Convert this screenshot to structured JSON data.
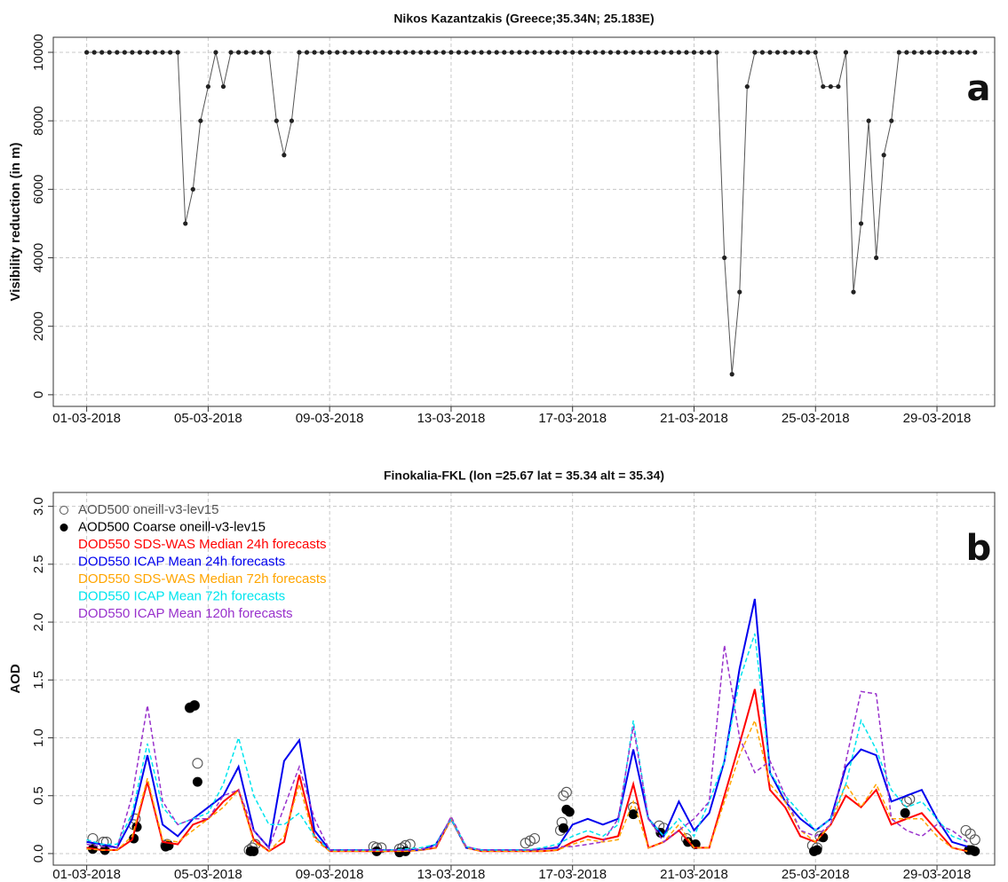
{
  "chart_data": [
    {
      "type": "line",
      "title": "Nikos Kazantzakis (Greece;35.34N; 25.183E)",
      "y_label": "Visibility reduction (in m)",
      "annotation": "a",
      "color": "#222222",
      "line_color": "#555555",
      "markers": true,
      "grid": true,
      "xlim": [
        -0.1,
        30.9
      ],
      "ylim": [
        -340,
        10440
      ],
      "xticks": [
        {
          "value": 1,
          "label": "01-03-2018"
        },
        {
          "value": 5,
          "label": "05-03-2018"
        },
        {
          "value": 9,
          "label": "09-03-2018"
        },
        {
          "value": 13,
          "label": "13-03-2018"
        },
        {
          "value": 17,
          "label": "17-03-2018"
        },
        {
          "value": 21,
          "label": "21-03-2018"
        },
        {
          "value": 25,
          "label": "25-03-2018"
        },
        {
          "value": 29,
          "label": "29-03-2018"
        }
      ],
      "yticks": [
        0,
        2000,
        4000,
        6000,
        8000,
        10000
      ],
      "x": [
        1,
        1.25,
        1.5,
        1.75,
        2,
        2.25,
        2.5,
        2.75,
        3,
        3.25,
        3.5,
        3.75,
        4,
        4.25,
        4.5,
        4.75,
        5,
        5.25,
        5.5,
        5.75,
        6,
        6.25,
        6.5,
        6.75,
        7,
        7.25,
        7.5,
        7.75,
        8,
        8.25,
        8.5,
        8.75,
        9,
        9.25,
        9.5,
        9.75,
        10,
        10.25,
        10.5,
        10.75,
        11,
        11.25,
        11.5,
        11.75,
        12,
        12.25,
        12.5,
        12.75,
        13,
        13.25,
        13.5,
        13.75,
        14,
        14.25,
        14.5,
        14.75,
        15,
        15.25,
        15.5,
        15.75,
        16,
        16.25,
        16.5,
        16.75,
        17,
        17.25,
        17.5,
        17.75,
        18,
        18.25,
        18.5,
        18.75,
        19,
        19.25,
        19.5,
        19.75,
        20,
        20.25,
        20.5,
        20.75,
        21,
        21.25,
        21.5,
        21.75,
        22,
        22.25,
        22.5,
        22.75,
        23,
        23.25,
        23.5,
        23.75,
        24,
        24.25,
        24.5,
        24.75,
        25,
        25.25,
        25.5,
        25.75,
        26,
        26.25,
        26.5,
        26.75,
        27,
        27.25,
        27.5,
        27.75,
        28,
        28.25,
        28.5,
        28.75,
        29,
        29.25,
        29.5,
        29.75,
        30,
        30.25
      ],
      "values": [
        10000,
        10000,
        10000,
        10000,
        10000,
        10000,
        10000,
        10000,
        10000,
        10000,
        10000,
        10000,
        10000,
        5000,
        6000,
        8000,
        9000,
        10000,
        9000,
        10000,
        10000,
        10000,
        10000,
        10000,
        10000,
        8000,
        7000,
        8000,
        10000,
        10000,
        10000,
        10000,
        10000,
        10000,
        10000,
        10000,
        10000,
        10000,
        10000,
        10000,
        10000,
        10000,
        10000,
        10000,
        10000,
        10000,
        10000,
        10000,
        10000,
        10000,
        10000,
        10000,
        10000,
        10000,
        10000,
        10000,
        10000,
        10000,
        10000,
        10000,
        10000,
        10000,
        10000,
        10000,
        10000,
        10000,
        10000,
        10000,
        10000,
        10000,
        10000,
        10000,
        10000,
        10000,
        10000,
        10000,
        10000,
        10000,
        10000,
        10000,
        10000,
        10000,
        10000,
        10000,
        4000,
        600,
        3000,
        9000,
        10000,
        10000,
        10000,
        10000,
        10000,
        10000,
        10000,
        10000,
        10000,
        9000,
        9000,
        9000,
        10000,
        3000,
        5000,
        8000,
        4000,
        7000,
        8000,
        10000,
        10000,
        10000,
        10000,
        10000,
        10000,
        10000,
        10000,
        10000,
        10000,
        10000
      ]
    },
    {
      "type": "line",
      "title": "Finokalia-FKL (lon =25.67 lat = 35.34 alt = 35.34)",
      "y_label": "AOD",
      "annotation": "b",
      "grid": true,
      "legend": "top-left",
      "xlim": [
        -0.1,
        30.9
      ],
      "ylim": [
        -0.1,
        3.12
      ],
      "xticks": [
        {
          "value": 1,
          "label": "01-03-2018"
        },
        {
          "value": 5,
          "label": "05-03-2018"
        },
        {
          "value": 9,
          "label": "09-03-2018"
        },
        {
          "value": 13,
          "label": "13-03-2018"
        },
        {
          "value": 17,
          "label": "17-03-2018"
        },
        {
          "value": 21,
          "label": "21-03-2018"
        },
        {
          "value": 25,
          "label": "25-03-2018"
        },
        {
          "value": 29,
          "label": "29-03-2018"
        }
      ],
      "yticks": [
        {
          "value": 0,
          "label": "0.0"
        },
        0.5,
        {
          "value": 1,
          "label": "1.0"
        },
        1.5,
        {
          "value": 2,
          "label": "2.0"
        },
        2.5,
        {
          "value": 3,
          "label": "3.0"
        }
      ],
      "x": [
        1,
        1.5,
        2,
        2.5,
        3,
        3.5,
        4,
        4.5,
        5,
        5.5,
        6,
        6.5,
        7,
        7.5,
        8,
        8.5,
        9,
        9.5,
        10,
        10.5,
        11,
        11.5,
        12,
        12.5,
        13,
        13.5,
        14,
        14.5,
        15,
        15.5,
        16,
        16.5,
        17,
        17.5,
        18,
        18.5,
        19,
        19.5,
        20,
        20.5,
        21,
        21.5,
        22,
        22.5,
        23,
        23.5,
        24,
        24.5,
        25,
        25.5,
        26,
        26.5,
        27,
        27.5,
        28,
        28.5,
        29,
        29.5,
        30
      ],
      "series": [
        {
          "name": "AOD500 oneill-v3-lev15",
          "color": "#555555",
          "style": "open-circle",
          "x": [
            1.2,
            1.55,
            1.65,
            2.55,
            2.6,
            3.6,
            3.65,
            4.4,
            4.55,
            4.65,
            6.35,
            6.45,
            6.55,
            10.45,
            10.55,
            10.7,
            11.3,
            11.4,
            11.5,
            11.65,
            15.45,
            15.6,
            15.75,
            16.6,
            16.65,
            16.7,
            16.8,
            19.0,
            19.85,
            20.0,
            20.75,
            24.9,
            25.05,
            25.15,
            28.0,
            28.1,
            29.95,
            30.1,
            30.25
          ],
          "values": [
            0.13,
            0.1,
            0.1,
            0.25,
            0.3,
            0.07,
            0.08,
            1.26,
            1.28,
            0.78,
            0.03,
            0.05,
            0.08,
            0.06,
            0.05,
            0.05,
            0.04,
            0.05,
            0.07,
            0.08,
            0.09,
            0.11,
            0.13,
            0.2,
            0.27,
            0.5,
            0.53,
            0.4,
            0.24,
            0.22,
            0.13,
            0.07,
            0.05,
            0.15,
            0.45,
            0.47,
            0.2,
            0.17,
            0.12
          ]
        },
        {
          "name": "AOD500 Coarse oneill-v3-lev15",
          "color": "#000000",
          "style": "filled-circle",
          "x": [
            1.2,
            1.6,
            2.55,
            2.65,
            3.6,
            3.7,
            4.4,
            4.55,
            4.65,
            6.4,
            6.5,
            10.55,
            11.3,
            11.5,
            16.7,
            16.8,
            16.9,
            19.0,
            19.9,
            20.8,
            21.05,
            24.95,
            25.05,
            25.25,
            27.95,
            30.05,
            30.15,
            30.25
          ],
          "values": [
            0.04,
            0.03,
            0.13,
            0.23,
            0.06,
            0.07,
            1.26,
            1.28,
            0.62,
            0.02,
            0.02,
            0.02,
            0.01,
            0.02,
            0.22,
            0.38,
            0.36,
            0.34,
            0.18,
            0.1,
            0.08,
            0.02,
            0.03,
            0.14,
            0.35,
            0.03,
            0.03,
            0.02
          ]
        },
        {
          "name": "DOD550 SDS-WAS Median 24h forecasts",
          "color": "#ff0000",
          "style": "solid",
          "values": [
            0.05,
            0.03,
            0.03,
            0.12,
            0.62,
            0.1,
            0.08,
            0.25,
            0.3,
            0.45,
            0.55,
            0.12,
            0.02,
            0.1,
            0.68,
            0.15,
            0.02,
            0.02,
            0.02,
            0.02,
            0.02,
            0.02,
            0.03,
            0.05,
            0.3,
            0.05,
            0.02,
            0.02,
            0.02,
            0.02,
            0.02,
            0.03,
            0.1,
            0.15,
            0.12,
            0.15,
            0.6,
            0.05,
            0.1,
            0.2,
            0.05,
            0.05,
            0.5,
            0.95,
            1.42,
            0.55,
            0.4,
            0.15,
            0.1,
            0.25,
            0.5,
            0.4,
            0.55,
            0.25,
            0.3,
            0.35,
            0.2,
            0.05,
            0.02
          ]
        },
        {
          "name": "DOD550 ICAP Mean 24h forecasts",
          "color": "#0000ee",
          "style": "solid",
          "values": [
            0.1,
            0.08,
            0.05,
            0.3,
            0.85,
            0.25,
            0.15,
            0.3,
            0.4,
            0.5,
            0.75,
            0.2,
            0.05,
            0.8,
            0.98,
            0.2,
            0.03,
            0.03,
            0.03,
            0.03,
            0.03,
            0.03,
            0.03,
            0.08,
            0.3,
            0.05,
            0.03,
            0.03,
            0.03,
            0.03,
            0.04,
            0.05,
            0.25,
            0.3,
            0.25,
            0.3,
            0.9,
            0.3,
            0.15,
            0.45,
            0.2,
            0.35,
            0.8,
            1.6,
            2.2,
            0.7,
            0.45,
            0.3,
            0.2,
            0.3,
            0.75,
            0.9,
            0.85,
            0.45,
            0.5,
            0.55,
            0.3,
            0.1,
            0.06
          ]
        },
        {
          "name": "DOD550 SDS-WAS Median 72h forecasts",
          "color": "#ffa500",
          "style": "dashed",
          "values": [
            0.04,
            0.03,
            0.03,
            0.15,
            0.65,
            0.12,
            0.1,
            0.2,
            0.3,
            0.4,
            0.55,
            0.1,
            0.02,
            0.15,
            0.6,
            0.12,
            0.02,
            0.02,
            0.02,
            0.02,
            0.02,
            0.02,
            0.03,
            0.05,
            0.3,
            0.05,
            0.02,
            0.02,
            0.02,
            0.02,
            0.02,
            0.03,
            0.08,
            0.12,
            0.1,
            0.12,
            0.45,
            0.05,
            0.1,
            0.25,
            0.05,
            0.05,
            0.45,
            0.85,
            1.15,
            0.6,
            0.45,
            0.2,
            0.1,
            0.25,
            0.6,
            0.4,
            0.6,
            0.3,
            0.3,
            0.3,
            0.15,
            0.05,
            0.02
          ]
        },
        {
          "name": "DOD550 ICAP Mean 72h forecasts",
          "color": "#00e5ee",
          "style": "dashed",
          "values": [
            0.12,
            0.08,
            0.08,
            0.35,
            0.95,
            0.4,
            0.25,
            0.3,
            0.35,
            0.6,
            1.0,
            0.5,
            0.25,
            0.25,
            0.35,
            0.15,
            0.03,
            0.03,
            0.03,
            0.03,
            0.03,
            0.04,
            0.05,
            0.08,
            0.3,
            0.06,
            0.03,
            0.03,
            0.03,
            0.03,
            0.05,
            0.08,
            0.15,
            0.2,
            0.15,
            0.25,
            1.15,
            0.3,
            0.15,
            0.3,
            0.15,
            0.45,
            0.8,
            1.5,
            1.9,
            0.7,
            0.5,
            0.35,
            0.2,
            0.3,
            0.6,
            1.15,
            0.9,
            0.55,
            0.4,
            0.45,
            0.3,
            0.15,
            0.1
          ]
        },
        {
          "name": "DOD550 ICAP Mean 120h forecasts",
          "color": "#9932cc",
          "style": "dashed",
          "values": [
            0.08,
            0.06,
            0.05,
            0.5,
            1.28,
            0.45,
            0.25,
            0.3,
            0.3,
            0.5,
            0.55,
            0.2,
            0.05,
            0.4,
            0.75,
            0.3,
            0.03,
            0.03,
            0.03,
            0.03,
            0.03,
            0.03,
            0.04,
            0.06,
            0.32,
            0.06,
            0.03,
            0.03,
            0.03,
            0.03,
            0.04,
            0.06,
            0.06,
            0.08,
            0.1,
            0.3,
            1.1,
            0.3,
            0.1,
            0.2,
            0.3,
            0.45,
            1.8,
            1.0,
            0.7,
            0.8,
            0.5,
            0.2,
            0.15,
            0.25,
            0.8,
            1.4,
            1.38,
            0.3,
            0.2,
            0.15,
            0.25,
            0.2,
            0.1
          ]
        }
      ]
    }
  ]
}
